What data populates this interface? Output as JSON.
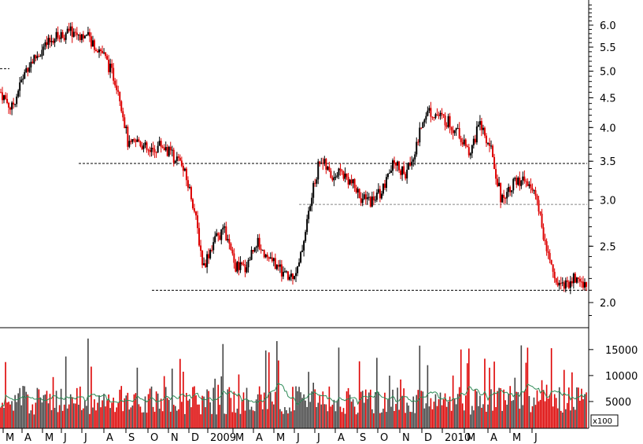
{
  "chart_data": [
    {
      "type": "candlestick",
      "yscale": "log",
      "ylim": [
        1.8,
        6.6
      ],
      "yticks": [
        "6.0",
        "5.5",
        "5.0",
        "4.5",
        "4.0",
        "3.5",
        "3.0",
        "2.5",
        "2.0"
      ],
      "x_months": [
        "M",
        "A",
        "M",
        "J",
        "J",
        "A",
        "S",
        "O",
        "N",
        "D",
        "2009",
        "M",
        "A",
        "M",
        "J",
        "J",
        "A",
        "S",
        "O",
        "N",
        "D",
        "2010",
        "M",
        "A",
        "M",
        "J"
      ],
      "reference_levels": [
        5.05,
        3.47,
        2.95,
        2.1
      ],
      "price_path": [
        [
          0,
          4.6
        ],
        [
          2,
          4.3
        ],
        [
          5,
          5.1
        ],
        [
          10,
          5.7
        ],
        [
          13,
          5.85
        ],
        [
          16,
          5.75
        ],
        [
          19,
          5.4
        ],
        [
          22,
          4.7
        ],
        [
          24,
          3.7
        ],
        [
          26,
          3.8
        ],
        [
          28,
          3.6
        ],
        [
          30,
          3.75
        ],
        [
          32,
          3.6
        ],
        [
          34,
          3.45
        ],
        [
          36,
          3.0
        ],
        [
          38,
          2.3
        ],
        [
          40,
          2.55
        ],
        [
          42,
          2.65
        ],
        [
          44,
          2.3
        ],
        [
          46,
          2.3
        ],
        [
          48,
          2.55
        ],
        [
          50,
          2.4
        ],
        [
          52,
          2.3
        ],
        [
          54,
          2.2
        ],
        [
          56,
          2.3
        ],
        [
          58,
          2.9
        ],
        [
          60,
          3.55
        ],
        [
          62,
          3.3
        ],
        [
          64,
          3.35
        ],
        [
          66,
          3.2
        ],
        [
          68,
          3.0
        ],
        [
          70,
          3.0
        ],
        [
          72,
          3.15
        ],
        [
          74,
          3.5
        ],
        [
          76,
          3.3
        ],
        [
          78,
          3.7
        ],
        [
          80,
          4.3
        ],
        [
          82,
          4.2
        ],
        [
          84,
          4.1
        ],
        [
          86,
          3.9
        ],
        [
          88,
          3.6
        ],
        [
          90,
          4.05
        ],
        [
          92,
          3.7
        ],
        [
          94,
          3.0
        ],
        [
          96,
          3.2
        ],
        [
          98,
          3.25
        ],
        [
          100,
          3.15
        ],
        [
          102,
          2.6
        ],
        [
          104,
          2.2
        ],
        [
          106,
          2.15
        ],
        [
          108,
          2.2
        ],
        [
          110,
          2.15
        ]
      ],
      "volume": {
        "scale_label": "x100",
        "yticks": [
          "15000",
          "10000",
          "5000"
        ],
        "ylim": [
          0,
          18000
        ]
      },
      "colors": {
        "up": "#000000",
        "down": "#dd0000",
        "volume_up": "#444444",
        "volume_down": "#dd0000",
        "volume_avg": "#2e8b57"
      }
    }
  ]
}
